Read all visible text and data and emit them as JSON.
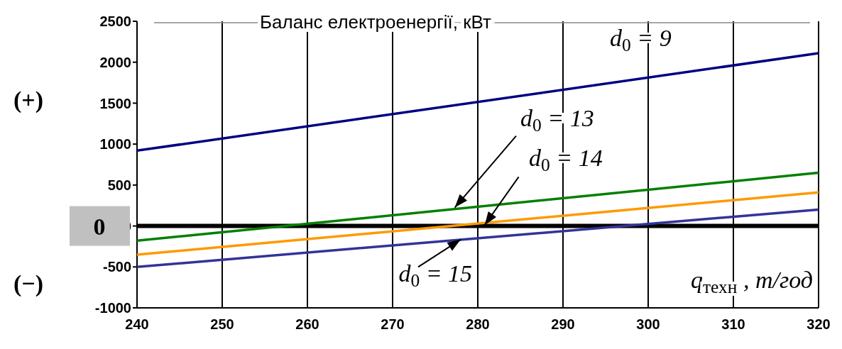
{
  "chart_data": {
    "type": "line",
    "title": "Баланс електроенергії, кВт",
    "xlabel": "q$_{техн}$ , т/год",
    "annotations": [
      "(+)",
      "(−)",
      "0"
    ],
    "series": [
      {
        "name": "d$_{0}$ = 9",
        "color": "#000080",
        "values": [
          920,
          2110
        ]
      },
      {
        "name": "d$_{0}$ = 13",
        "color": "#008000",
        "values": [
          -180,
          650
        ]
      },
      {
        "name": "d$_{0}$ = 14",
        "color": "#ff9900",
        "values": [
          -350,
          410
        ]
      },
      {
        "name": "d$_{0}$ = 15",
        "color": "#333399",
        "values": [
          -500,
          200
        ]
      }
    ],
    "x": [
      240,
      320
    ],
    "xlim": [
      240,
      320
    ],
    "xticks": [
      240,
      250,
      260,
      270,
      280,
      290,
      300,
      310,
      320
    ],
    "ylim": [
      -1000,
      2500
    ],
    "yticks": [
      -1000,
      -500,
      0,
      500,
      1000,
      1500,
      2000,
      2500
    ],
    "ref_lines": [
      {
        "axis": "y",
        "value": 0,
        "color": "#000000"
      }
    ],
    "grid": "x",
    "legend": false,
    "marker": "none",
    "line_style": "solid"
  }
}
